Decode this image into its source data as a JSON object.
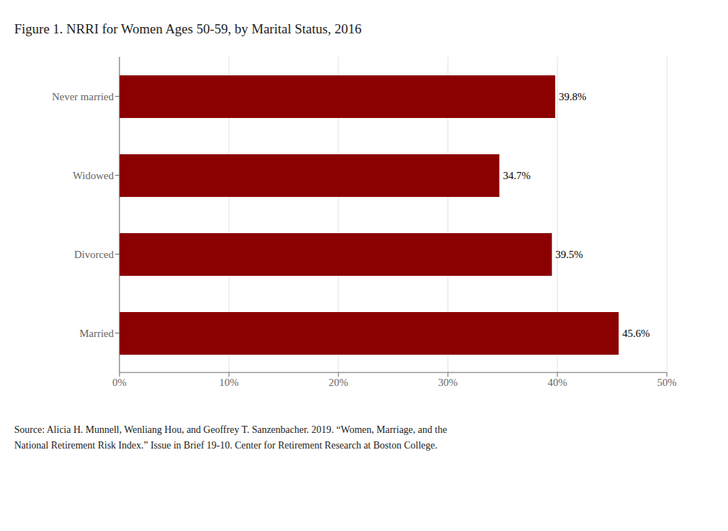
{
  "chart_data": {
    "type": "bar",
    "orientation": "horizontal",
    "title": "Figure 1. NRRI for Women Ages 50-59, by Marital Status, 2016",
    "categories": [
      "Married",
      "Divorced",
      "Widowed",
      "Never married"
    ],
    "values": [
      45.6,
      39.5,
      34.7,
      39.8
    ],
    "value_labels": [
      "45.6%",
      "39.5%",
      "34.7%",
      "39.8%"
    ],
    "data_labels": true,
    "color": "#8B0000",
    "xlim": [
      0,
      50
    ],
    "xticks": [
      {
        "value": 0,
        "label": "0%"
      },
      {
        "value": 10,
        "label": "10%"
      },
      {
        "value": 20,
        "label": "20%"
      },
      {
        "value": 30,
        "label": "30%"
      },
      {
        "value": 40,
        "label": "40%"
      },
      {
        "value": 50,
        "label": "50%"
      }
    ],
    "grid": true,
    "annotations": [
      "Source: Alicia H. Munnell, Wenliang Hou, and Geoffrey T. Sanzenbacher. 2019. “Women, Marriage, and the",
      "National Retirement Risk Index.” Issue in Brief 19-10. Center for Retirement Research at Boston College."
    ]
  }
}
